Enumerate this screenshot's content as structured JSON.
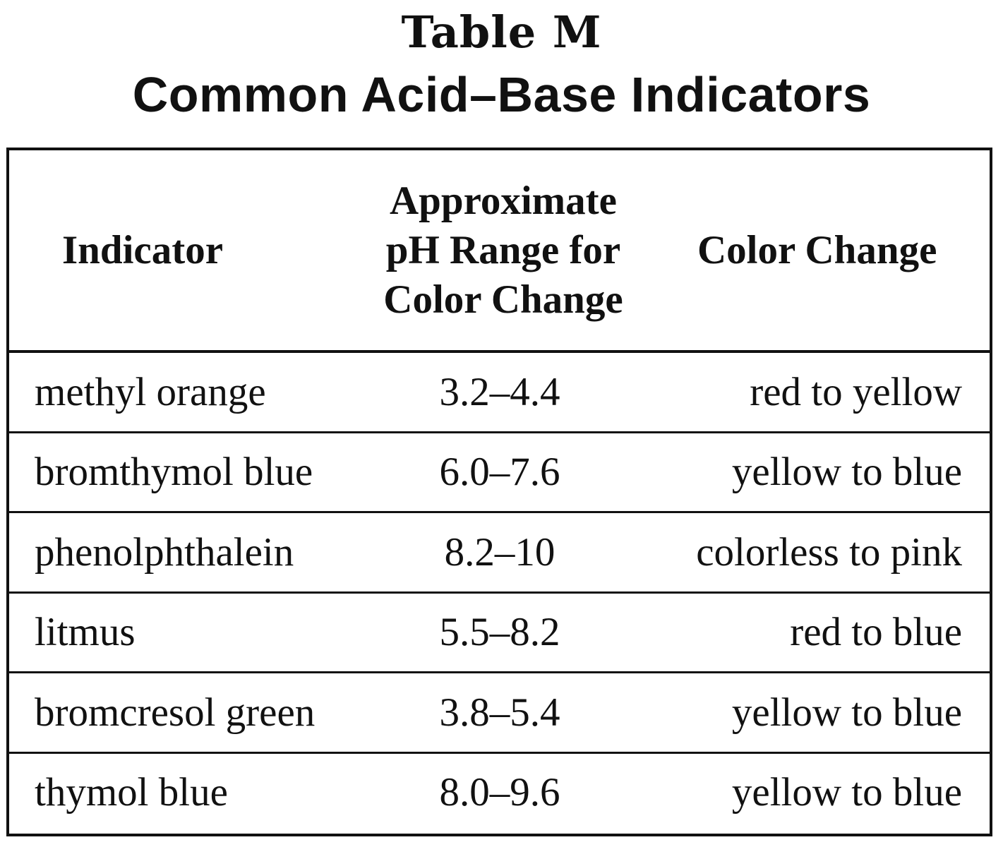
{
  "title": {
    "label": "Table M",
    "name": "Common Acid–Base Indicators"
  },
  "table": {
    "headers": {
      "indicator": "Indicator",
      "range_lines": [
        "Approximate",
        "pH Range for",
        "Color Change"
      ],
      "color_change": "Color Change"
    },
    "rows": [
      {
        "indicator": "methyl orange",
        "range": "3.2–4.4",
        "color_change": "red to yellow"
      },
      {
        "indicator": "bromthymol blue",
        "range": "6.0–7.6",
        "color_change": "yellow to blue"
      },
      {
        "indicator": "phenolphthalein",
        "range": "8.2–10",
        "color_change": "colorless to pink"
      },
      {
        "indicator": "litmus",
        "range": "5.5–8.2",
        "color_change": "red to blue"
      },
      {
        "indicator": "bromcresol green",
        "range": "3.8–5.4",
        "color_change": "yellow to blue"
      },
      {
        "indicator": "thymol blue",
        "range": "8.0–9.6",
        "color_change": "yellow to blue"
      }
    ]
  }
}
